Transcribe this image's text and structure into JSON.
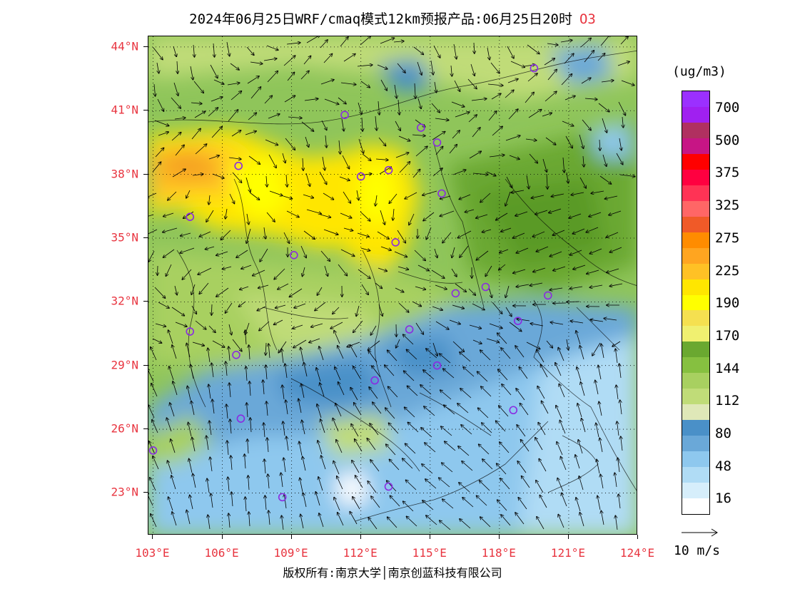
{
  "title": {
    "text": "2024年06月25日WRF/cmaq模式12km预报产品:06月25日20时",
    "species": "O3"
  },
  "map": {
    "lat_labels": [
      "44°N",
      "41°N",
      "38°N",
      "35°N",
      "32°N",
      "29°N",
      "26°N",
      "23°N"
    ],
    "lon_labels": [
      "103°E",
      "106°E",
      "109°E",
      "112°E",
      "115°E",
      "118°E",
      "121°E",
      "124°E"
    ],
    "lat_values": [
      44,
      41,
      38,
      35,
      32,
      29,
      26,
      23
    ],
    "lon_values": [
      103,
      106,
      109,
      112,
      115,
      118,
      121,
      124
    ],
    "lat_range": [
      21,
      44.5
    ],
    "lon_range": [
      102.8,
      124
    ],
    "label_color": "#e8343f",
    "station_color": "#8a2be2",
    "stations": [
      {
        "lon": 119.5,
        "lat": 43.0
      },
      {
        "lon": 111.3,
        "lat": 40.8
      },
      {
        "lon": 114.6,
        "lat": 40.2
      },
      {
        "lon": 115.3,
        "lat": 39.5
      },
      {
        "lon": 106.7,
        "lat": 38.4
      },
      {
        "lon": 112.0,
        "lat": 37.9
      },
      {
        "lon": 113.2,
        "lat": 38.2
      },
      {
        "lon": 115.5,
        "lat": 37.1
      },
      {
        "lon": 104.6,
        "lat": 36.0
      },
      {
        "lon": 113.5,
        "lat": 34.8
      },
      {
        "lon": 109.1,
        "lat": 34.2
      },
      {
        "lon": 116.1,
        "lat": 32.4
      },
      {
        "lon": 117.4,
        "lat": 32.7
      },
      {
        "lon": 120.1,
        "lat": 32.3
      },
      {
        "lon": 118.8,
        "lat": 31.1
      },
      {
        "lon": 114.1,
        "lat": 30.7
      },
      {
        "lon": 104.6,
        "lat": 30.6
      },
      {
        "lon": 106.6,
        "lat": 29.5
      },
      {
        "lon": 115.3,
        "lat": 29.0
      },
      {
        "lon": 112.6,
        "lat": 28.3
      },
      {
        "lon": 106.8,
        "lat": 26.5
      },
      {
        "lon": 118.6,
        "lat": 26.9
      },
      {
        "lon": 103.0,
        "lat": 25.0
      },
      {
        "lon": 108.6,
        "lat": 22.8
      },
      {
        "lon": 113.2,
        "lat": 23.3
      }
    ]
  },
  "legend": {
    "unit": "(ug/m3)",
    "colors": [
      "#9b30ff",
      "#a020f0",
      "#b03060",
      "#c71585",
      "#ff0000",
      "#ff0040",
      "#ff3355",
      "#ff6666",
      "#f05a28",
      "#ff8c00",
      "#ffa520",
      "#ffc125",
      "#ffe600",
      "#ffff00",
      "#f5e050",
      "#f0f070",
      "#6aa830",
      "#86c040",
      "#a8d060",
      "#c0dc78",
      "#dfe8b8",
      "#4a90c8",
      "#6aa8d8",
      "#8ec8ee",
      "#b0dcf5",
      "#d6eefb",
      "#ffffff"
    ],
    "labels": [
      "700",
      "500",
      "375",
      "325",
      "275",
      "225",
      "190",
      "170",
      "144",
      "112",
      "80",
      "48",
      "16"
    ]
  },
  "reference_vector": {
    "label": "10 m/s"
  },
  "copyright": "版权所有:南京大学│南京创蓝科技有限公司"
}
